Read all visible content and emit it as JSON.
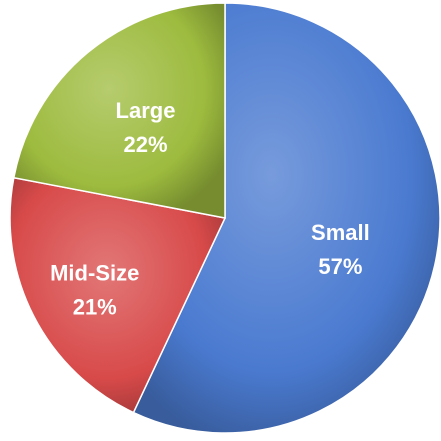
{
  "chart_data": {
    "type": "pie",
    "title": "",
    "slices": [
      {
        "label": "Small",
        "value": 57,
        "value_label": "57%",
        "color": "#4a7ad0"
      },
      {
        "label": "Mid-Size",
        "value": 21,
        "value_label": "21%",
        "color": "#d84a4a"
      },
      {
        "label": "Large",
        "value": 22,
        "value_label": "22%",
        "color": "#9dbb3e"
      }
    ],
    "start_angle_deg": 0,
    "direction": "clockwise",
    "legend": "none"
  }
}
